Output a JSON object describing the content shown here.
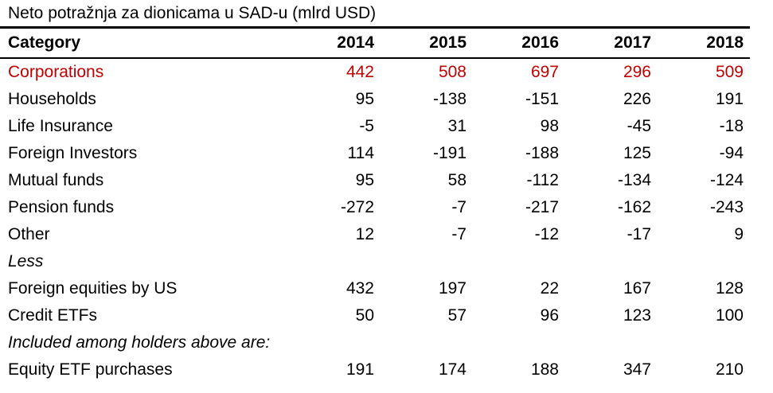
{
  "title": "Neto potražnja za dionicama u SAD-u (mlrd USD)",
  "colors": {
    "highlight": "#C00000",
    "text": "#000000",
    "background": "#FFFFFF"
  },
  "table": {
    "columns": [
      "Category",
      "2014",
      "2015",
      "2016",
      "2017",
      "2018"
    ],
    "rows": [
      {
        "label": "Corporations",
        "values": [
          "442",
          "508",
          "697",
          "296",
          "509"
        ],
        "style": "highlight"
      },
      {
        "label": "Households",
        "values": [
          "95",
          "-138",
          "-151",
          "226",
          "191"
        ],
        "style": "normal"
      },
      {
        "label": "Life Insurance",
        "values": [
          "-5",
          "31",
          "98",
          "-45",
          "-18"
        ],
        "style": "normal"
      },
      {
        "label": "Foreign Investors",
        "values": [
          "114",
          "-191",
          "-188",
          "125",
          "-94"
        ],
        "style": "normal"
      },
      {
        "label": "Mutual funds",
        "values": [
          "95",
          "58",
          "-112",
          "-134",
          "-124"
        ],
        "style": "normal"
      },
      {
        "label": "Pension funds",
        "values": [
          "-272",
          "-7",
          "-217",
          "-162",
          "-243"
        ],
        "style": "normal"
      },
      {
        "label": "Other",
        "values": [
          "12",
          "-7",
          "-12",
          "-17",
          "9"
        ],
        "style": "normal"
      },
      {
        "label": "Less",
        "values": [
          "",
          "",
          "",
          "",
          ""
        ],
        "style": "italic"
      },
      {
        "label": "Foreign equities by US",
        "values": [
          "432",
          "197",
          "22",
          "167",
          "128"
        ],
        "style": "normal"
      },
      {
        "label": "Credit ETFs",
        "values": [
          "50",
          "57",
          "96",
          "123",
          "100"
        ],
        "style": "normal"
      },
      {
        "label": "Included among holders above are:",
        "values": [
          "",
          "",
          "",
          "",
          ""
        ],
        "style": "italic"
      },
      {
        "label": "Equity ETF purchases",
        "values": [
          "191",
          "174",
          "188",
          "347",
          "210"
        ],
        "style": "normal"
      }
    ]
  },
  "chart_data": {
    "type": "table",
    "title": "Neto potražnja za dionicama u SAD-u (mlrd USD)",
    "unit": "mlrd USD",
    "categories": [
      "2014",
      "2015",
      "2016",
      "2017",
      "2018"
    ],
    "series": [
      {
        "name": "Corporations",
        "values": [
          442,
          508,
          697,
          296,
          509
        ]
      },
      {
        "name": "Households",
        "values": [
          95,
          -138,
          -151,
          226,
          191
        ]
      },
      {
        "name": "Life Insurance",
        "values": [
          -5,
          31,
          98,
          -45,
          -18
        ]
      },
      {
        "name": "Foreign Investors",
        "values": [
          114,
          -191,
          -188,
          125,
          -94
        ]
      },
      {
        "name": "Mutual funds",
        "values": [
          95,
          58,
          -112,
          -134,
          -124
        ]
      },
      {
        "name": "Pension funds",
        "values": [
          -272,
          -7,
          -217,
          -162,
          -243
        ]
      },
      {
        "name": "Other",
        "values": [
          12,
          -7,
          -12,
          -17,
          9
        ]
      },
      {
        "name": "Foreign equities by US",
        "values": [
          432,
          197,
          22,
          167,
          128
        ],
        "section": "Less"
      },
      {
        "name": "Credit ETFs",
        "values": [
          50,
          57,
          96,
          123,
          100
        ],
        "section": "Less"
      },
      {
        "name": "Equity ETF purchases",
        "values": [
          191,
          174,
          188,
          347,
          210
        ],
        "section": "Included among holders above are:"
      }
    ]
  }
}
